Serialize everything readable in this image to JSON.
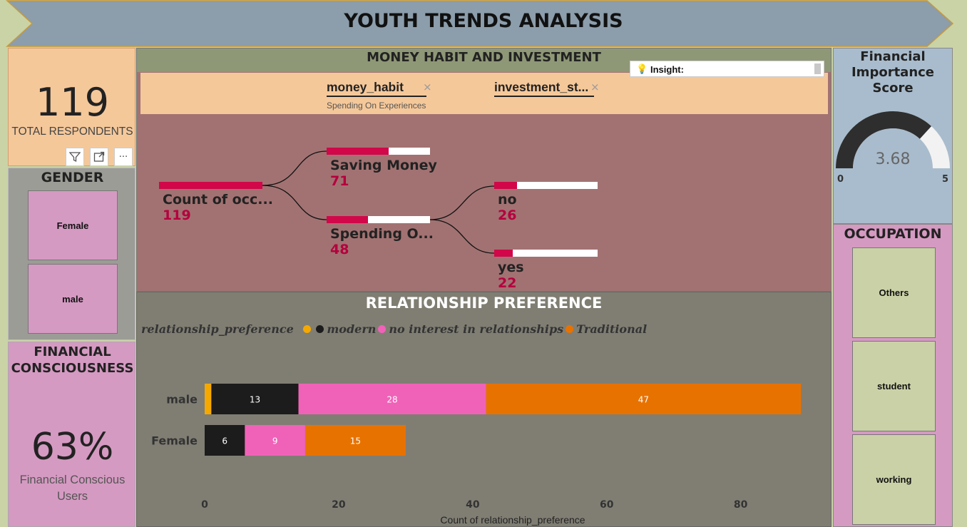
{
  "header": {
    "title": "YOUTH TRENDS ANALYSIS"
  },
  "respondents": {
    "value": "119",
    "label": "TOTAL RESPONDENTS"
  },
  "visual_toolbar": {
    "icons": [
      "filter-icon",
      "focus-mode-icon",
      "more-options-icon"
    ],
    "more_label": "···"
  },
  "gender": {
    "title": "GENDER",
    "options": [
      "Female",
      "male"
    ]
  },
  "financial_consciousness": {
    "title_line1": "FINANCIAL",
    "title_line2": "CONSCIOUSNESS",
    "value": "63%",
    "label_line1": "Financial Conscious",
    "label_line2": "Users"
  },
  "money_habit": {
    "title": "MONEY HABIT AND INVESTMENT",
    "insight_label": "Insight:",
    "filters": [
      {
        "name": "money_habit",
        "value": "Spending On Experiences",
        "remove": "×"
      },
      {
        "name": "investment_st...",
        "remove": "×"
      }
    ],
    "tree": {
      "root": {
        "label": "Count of occ...",
        "value": "119",
        "fraction": 1.0
      },
      "level1": [
        {
          "label": "Saving Money",
          "value": "71",
          "fraction": 0.597
        },
        {
          "label": "Spending O...",
          "value": "48",
          "fraction": 0.403
        }
      ],
      "level2": [
        {
          "label": "no",
          "value": "26",
          "fraction": 0.22
        },
        {
          "label": "yes",
          "value": "22",
          "fraction": 0.18
        }
      ]
    }
  },
  "relationship": {
    "title": "RELATIONSHIP PREFERENCE",
    "legend_title": "relationship_preference",
    "x_axis_title": "Count of relationship_preference"
  },
  "chart_data": {
    "type": "bar",
    "orientation": "horizontal",
    "stacked": true,
    "categories": [
      "male",
      "Female"
    ],
    "series": [
      {
        "name": "",
        "color": "#f5a800",
        "values": [
          1,
          0
        ]
      },
      {
        "name": "modern",
        "color": "#1c1c1c",
        "values": [
          13,
          6
        ]
      },
      {
        "name": "no interest in relationships",
        "color": "#f062b8",
        "values": [
          28,
          9
        ]
      },
      {
        "name": "Traditional",
        "color": "#e87200",
        "values": [
          47,
          15
        ]
      }
    ],
    "xlabel": "Count of relationship_preference",
    "ylabel": "",
    "xticks": [
      "0",
      "20",
      "40",
      "60",
      "80"
    ],
    "xlim": [
      0,
      91
    ],
    "legend_position": "top-left",
    "grid": false
  },
  "financial_importance": {
    "title_line1": "Financial",
    "title_line2": "Importance Score",
    "value": "3.68",
    "min": "0",
    "max": "5",
    "score": 3.68
  },
  "occupation": {
    "title": "OCCUPATION",
    "options": [
      "Others",
      "student",
      "working"
    ]
  }
}
